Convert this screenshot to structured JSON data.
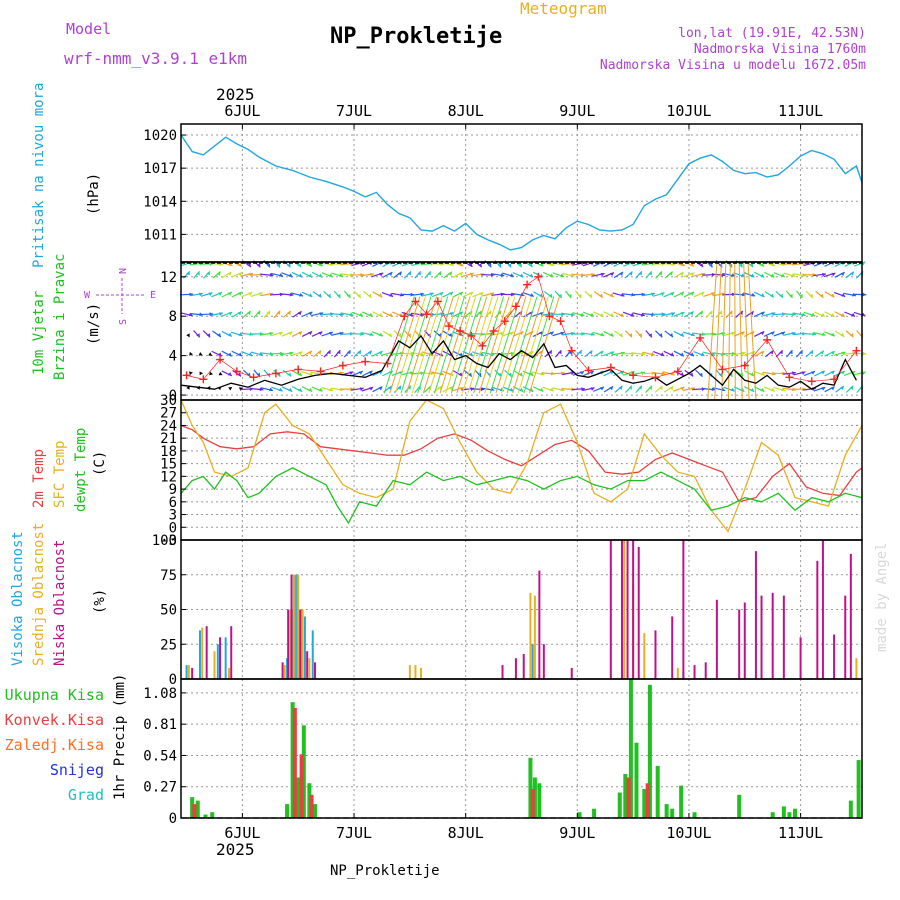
{
  "header": {
    "model_label": "Model",
    "model_name": "wrf-nmm_v3.9.1 e1km",
    "app_title": "Meteogram",
    "station_title": "NP_Prokletije",
    "coords": "lon,lat (19.91E, 42.53N)",
    "elevation": "Nadmorska Visina 1760m",
    "model_elevation": "Nadmorska Visina u modelu 1672.05m",
    "year_top": "2025",
    "year_bottom": "2025",
    "footer_station": "NP_Prokletije",
    "watermark": "made by Angel"
  },
  "colors": {
    "pressure": "#22a6e0",
    "wind_speed": "#000000",
    "gust": "#ff2020",
    "temp2m": "#e84040",
    "sfc_temp": "#e8b020",
    "dewpt": "#20c020",
    "high_cloud": "#22a6e0",
    "mid_cloud": "#e8b020",
    "low_cloud": "#c0108a",
    "total_precip": "#20c020",
    "conv_precip": "#e84040",
    "frozen_precip": "#ff7020",
    "snow": "#2030e0",
    "hail": "#20c0c0"
  },
  "chart_data": [
    {
      "type": "line",
      "panel": "pressure",
      "labels": [
        "Pritisak na nivou mora",
        "(hPa)"
      ],
      "x_dates": [
        "6JUL",
        "7JUL",
        "8JUL",
        "9JUL",
        "10JUL",
        "11JUL"
      ],
      "x_range_days": [
        -0.55,
        5.55
      ],
      "ylim": [
        1008.5,
        1021
      ],
      "yticks": [
        1011,
        1014,
        1017,
        1020
      ],
      "series": [
        {
          "x": [
            -0.55,
            -0.45,
            -0.35,
            -0.25,
            -0.15,
            -0.05,
            0.05,
            0.15,
            0.3,
            0.45,
            0.6,
            0.75,
            0.9,
            1.0,
            1.1,
            1.2,
            1.3,
            1.4,
            1.5,
            1.6,
            1.7,
            1.8,
            1.9,
            2.0,
            2.1,
            2.2,
            2.3,
            2.4,
            2.5,
            2.6,
            2.7,
            2.8,
            2.9,
            3.0,
            3.1,
            3.2,
            3.3,
            3.4,
            3.5,
            3.6,
            3.7,
            3.8,
            3.9,
            4.0,
            4.1,
            4.2,
            4.3,
            4.4,
            4.5,
            4.6,
            4.7,
            4.8,
            4.9,
            5.0,
            5.1,
            5.2,
            5.3,
            5.4,
            5.5,
            5.55
          ],
          "values": [
            1020.0,
            1018.5,
            1018.2,
            1019.0,
            1019.8,
            1019.2,
            1018.7,
            1018.0,
            1017.2,
            1016.8,
            1016.2,
            1015.8,
            1015.3,
            1014.9,
            1014.4,
            1014.8,
            1013.7,
            1012.9,
            1012.5,
            1011.4,
            1011.3,
            1011.8,
            1011.3,
            1012.0,
            1011.0,
            1010.5,
            1010.1,
            1009.6,
            1009.8,
            1010.5,
            1010.9,
            1010.6,
            1011.6,
            1012.2,
            1011.9,
            1011.4,
            1011.3,
            1011.4,
            1011.9,
            1013.6,
            1014.2,
            1014.6,
            1016.0,
            1017.4,
            1017.9,
            1018.2,
            1017.6,
            1016.8,
            1016.5,
            1016.6,
            1016.2,
            1016.4,
            1017.2,
            1018.1,
            1018.6,
            1018.3,
            1017.8,
            1016.5,
            1017.2,
            1015.7
          ]
        }
      ]
    },
    {
      "type": "line",
      "panel": "wind",
      "labels": [
        "10m Vjetar",
        "Brzina i Pravac",
        "(m/s)"
      ],
      "compass": {
        "north": "N",
        "south": "S",
        "west": "W",
        "east": "E"
      },
      "ylim": [
        -0.5,
        13.5
      ],
      "yticks": [
        0,
        4,
        8,
        12
      ],
      "series": [
        {
          "key": "speed",
          "x": [
            -0.55,
            -0.4,
            -0.25,
            -0.1,
            0.05,
            0.2,
            0.35,
            0.5,
            0.65,
            0.8,
            0.95,
            1.1,
            1.25,
            1.4,
            1.5,
            1.6,
            1.7,
            1.8,
            1.9,
            2.0,
            2.1,
            2.2,
            2.3,
            2.4,
            2.5,
            2.6,
            2.7,
            2.8,
            2.9,
            3.0,
            3.1,
            3.2,
            3.3,
            3.4,
            3.5,
            3.6,
            3.7,
            3.8,
            3.9,
            4.0,
            4.1,
            4.2,
            4.3,
            4.4,
            4.5,
            4.6,
            4.7,
            4.8,
            4.9,
            5.0,
            5.1,
            5.2,
            5.3,
            5.4,
            5.5
          ],
          "values": [
            1.0,
            0.8,
            0.6,
            1.2,
            0.8,
            1.5,
            1.0,
            1.6,
            2.0,
            2.2,
            2.0,
            1.8,
            2.5,
            5.5,
            4.8,
            6.0,
            4.2,
            5.5,
            3.6,
            4.0,
            3.2,
            2.8,
            4.2,
            3.6,
            4.5,
            3.8,
            5.2,
            2.8,
            3.0,
            2.0,
            1.8,
            2.2,
            2.6,
            1.5,
            1.2,
            1.4,
            1.8,
            1.0,
            1.6,
            2.2,
            3.0,
            2.0,
            1.0,
            2.6,
            1.5,
            1.2,
            2.0,
            1.0,
            0.8,
            1.4,
            0.6,
            1.2,
            1.0,
            3.6,
            1.5
          ]
        },
        {
          "key": "gust",
          "x": [
            -0.5,
            -0.35,
            -0.2,
            -0.05,
            0.1,
            0.3,
            0.5,
            0.7,
            0.9,
            1.1,
            1.3,
            1.45,
            1.55,
            1.65,
            1.75,
            1.85,
            1.95,
            2.05,
            2.15,
            2.25,
            2.35,
            2.45,
            2.55,
            2.65,
            2.75,
            2.85,
            2.95,
            3.1,
            3.3,
            3.5,
            3.7,
            3.9,
            4.1,
            4.3,
            4.5,
            4.7,
            4.9,
            5.1,
            5.3,
            5.5
          ],
          "values": [
            2.0,
            1.6,
            3.6,
            2.4,
            1.8,
            2.2,
            2.6,
            2.4,
            3.0,
            3.4,
            3.2,
            8.0,
            9.5,
            8.2,
            9.5,
            7.0,
            6.5,
            6.0,
            5.0,
            6.5,
            7.5,
            9.0,
            11.2,
            12.0,
            8.0,
            7.5,
            4.5,
            2.5,
            2.8,
            2.0,
            1.8,
            2.4,
            5.8,
            2.6,
            3.0,
            5.6,
            1.8,
            1.4,
            1.6,
            4.5
          ]
        }
      ]
    },
    {
      "type": "line",
      "panel": "temperature",
      "labels": [
        "2m Temp",
        "SFC Temp",
        "dewpt Temp",
        "(C)"
      ],
      "ylim": [
        -3,
        30
      ],
      "yticks": [
        -3,
        0,
        3,
        6,
        9,
        12,
        15,
        18,
        21,
        24,
        27,
        30
      ],
      "series": [
        {
          "key": "temp2m",
          "x": [
            -0.55,
            -0.45,
            -0.35,
            -0.2,
            -0.05,
            0.1,
            0.25,
            0.4,
            0.55,
            0.7,
            0.85,
            1.0,
            1.15,
            1.3,
            1.45,
            1.6,
            1.75,
            1.9,
            2.05,
            2.2,
            2.35,
            2.5,
            2.65,
            2.8,
            2.95,
            3.1,
            3.25,
            3.4,
            3.55,
            3.7,
            3.85,
            4.0,
            4.15,
            4.3,
            4.45,
            4.6,
            4.75,
            4.9,
            5.05,
            5.2,
            5.35,
            5.5,
            5.55
          ],
          "values": [
            24,
            23,
            21,
            19,
            18.5,
            19,
            22,
            22.5,
            22,
            19,
            18.5,
            18,
            17.5,
            17,
            17,
            18.5,
            21,
            22,
            20.5,
            18,
            16,
            14.5,
            17,
            19.5,
            20.5,
            18,
            13,
            12.5,
            13,
            16,
            17.5,
            16,
            14.5,
            13,
            6,
            7,
            12,
            15,
            9.5,
            8,
            7.5,
            13,
            14
          ]
        },
        {
          "key": "sfc_temp",
          "x": [
            -0.55,
            -0.45,
            -0.35,
            -0.25,
            -0.1,
            0.05,
            0.2,
            0.3,
            0.45,
            0.6,
            0.75,
            0.9,
            1.05,
            1.2,
            1.35,
            1.5,
            1.65,
            1.8,
            1.95,
            2.1,
            2.25,
            2.4,
            2.55,
            2.7,
            2.85,
            3.0,
            3.15,
            3.3,
            3.45,
            3.6,
            3.75,
            3.9,
            4.05,
            4.2,
            4.35,
            4.5,
            4.65,
            4.8,
            4.95,
            5.1,
            5.25,
            5.4,
            5.55
          ],
          "values": [
            30,
            24,
            20,
            13,
            12,
            14,
            27,
            29,
            24,
            22,
            16,
            10,
            8,
            7,
            9,
            25,
            30,
            28,
            20,
            13,
            9,
            8,
            15,
            27,
            29,
            20,
            8,
            6,
            9,
            22,
            17,
            13,
            12,
            4,
            -1,
            9,
            20,
            17,
            7,
            6,
            5,
            17,
            24
          ]
        },
        {
          "key": "dewpt",
          "x": [
            -0.55,
            -0.45,
            -0.35,
            -0.25,
            -0.15,
            -0.05,
            0.05,
            0.15,
            0.3,
            0.45,
            0.6,
            0.75,
            0.85,
            0.95,
            1.05,
            1.2,
            1.35,
            1.5,
            1.65,
            1.8,
            1.95,
            2.1,
            2.25,
            2.4,
            2.55,
            2.7,
            2.85,
            3.0,
            3.15,
            3.3,
            3.45,
            3.6,
            3.75,
            3.9,
            4.05,
            4.2,
            4.35,
            4.5,
            4.65,
            4.8,
            4.95,
            5.1,
            5.25,
            5.4,
            5.55
          ],
          "values": [
            8,
            11,
            12,
            9,
            13,
            11,
            7,
            8,
            12,
            14,
            12,
            10,
            5,
            1,
            6,
            5,
            11,
            10,
            13,
            11,
            12,
            10,
            11,
            12,
            11,
            9,
            11,
            12,
            10,
            9,
            11,
            11,
            13,
            11,
            9,
            4,
            5,
            7,
            6,
            8,
            4,
            7,
            6,
            8,
            7
          ]
        }
      ]
    },
    {
      "type": "bar",
      "panel": "cloud",
      "labels": [
        "Visoka Oblacnost",
        "Srednja Oblacnost",
        "Niska Oblacnost",
        "(%)"
      ],
      "ylim": [
        0,
        100
      ],
      "yticks": [
        0,
        25,
        50,
        75,
        100
      ],
      "series": [
        {
          "key": "high",
          "x": [
            -0.5,
            -0.38,
            -0.22,
            -0.15,
            0.4,
            0.45,
            0.47,
            0.49,
            0.51,
            0.56,
            0.63,
            2.6,
            3.95
          ],
          "values": [
            10,
            35,
            25,
            30,
            15,
            50,
            75,
            75,
            50,
            45,
            35,
            25,
            5
          ]
        },
        {
          "key": "mid",
          "x": [
            -0.48,
            -0.36,
            -0.25,
            -0.12,
            0.38,
            0.43,
            0.46,
            0.5,
            0.54,
            0.6,
            1.5,
            1.55,
            1.6,
            2.58,
            2.62,
            3.42,
            3.5,
            3.6,
            3.9,
            5.5
          ],
          "values": [
            10,
            37,
            20,
            8,
            10,
            50,
            75,
            75,
            50,
            15,
            10,
            10,
            8,
            62,
            60,
            100,
            68,
            33,
            8,
            15
          ]
        },
        {
          "key": "low",
          "x": [
            -0.45,
            -0.32,
            -0.2,
            -0.1,
            0.36,
            0.41,
            0.44,
            0.52,
            0.58,
            0.65,
            2.33,
            2.45,
            2.52,
            2.66,
            2.7,
            2.95,
            3.3,
            3.4,
            3.45,
            3.5,
            3.55,
            3.7,
            3.85,
            3.95,
            4.05,
            4.15,
            4.25,
            4.45,
            4.5,
            4.6,
            4.65,
            4.75,
            4.85,
            5.0,
            5.15,
            5.2,
            5.3,
            5.4,
            5.45
          ],
          "values": [
            8,
            38,
            30,
            38,
            12,
            50,
            75,
            50,
            20,
            12,
            10,
            15,
            18,
            78,
            25,
            8,
            100,
            100,
            100,
            100,
            95,
            35,
            45,
            100,
            10,
            12,
            57,
            50,
            55,
            92,
            60,
            62,
            60,
            30,
            85,
            100,
            32,
            60,
            90
          ]
        }
      ]
    },
    {
      "type": "bar",
      "panel": "precip",
      "labels": [
        "Ukupna Kisa",
        "Konvek.Kisa",
        "Zaledj.Kisa",
        "Snijeg",
        "Grad",
        "1hr Precip (mm)"
      ],
      "ylim": [
        0,
        1.2
      ],
      "yticks": [
        0,
        0.27,
        0.54,
        0.81,
        1.08
      ],
      "series": [
        {
          "key": "total",
          "x": [
            -0.45,
            -0.4,
            -0.33,
            -0.27,
            0.4,
            0.45,
            0.5,
            0.55,
            0.6,
            0.65,
            2.58,
            2.62,
            2.66,
            3.02,
            3.15,
            3.38,
            3.43,
            3.48,
            3.53,
            3.6,
            3.65,
            3.72,
            3.8,
            3.85,
            3.93,
            4.05,
            4.45,
            4.75,
            4.85,
            4.9,
            4.95,
            5.45,
            5.52
          ],
          "values": [
            0.18,
            0.15,
            0.03,
            0.05,
            0.12,
            1.0,
            0.35,
            0.8,
            0.3,
            0.12,
            0.52,
            0.35,
            0.3,
            0.05,
            0.08,
            0.22,
            0.38,
            1.2,
            0.65,
            0.25,
            1.15,
            0.45,
            0.12,
            0.08,
            0.28,
            0.05,
            0.2,
            0.05,
            0.1,
            0.05,
            0.08,
            0.15,
            0.5
          ]
        },
        {
          "key": "convective",
          "x": [
            -0.43,
            0.47,
            0.53,
            0.62,
            2.6,
            3.46,
            3.63
          ],
          "values": [
            0.12,
            0.95,
            0.55,
            0.2,
            0.25,
            0.35,
            0.3
          ]
        }
      ]
    }
  ]
}
